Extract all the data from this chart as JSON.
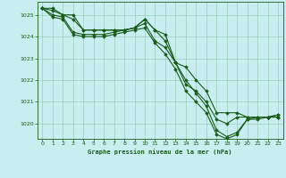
{
  "title": "Graphe pression niveau de la mer (hPa)",
  "bg_color": "#c8eef0",
  "grid_color": "#99ccbb",
  "line_color": "#1a5c1a",
  "xlim": [
    -0.5,
    23.5
  ],
  "ylim": [
    1019.3,
    1025.6
  ],
  "xticks": [
    0,
    1,
    2,
    3,
    4,
    5,
    6,
    7,
    8,
    9,
    10,
    11,
    12,
    13,
    14,
    15,
    16,
    17,
    18,
    19,
    20,
    21,
    22,
    23
  ],
  "yticks": [
    1020,
    1021,
    1022,
    1023,
    1024,
    1025
  ],
  "series": [
    [
      1025.3,
      1025.3,
      1025.0,
      1025.0,
      1024.3,
      1024.3,
      1024.3,
      1024.3,
      1024.3,
      1024.4,
      1024.8,
      1024.3,
      1024.1,
      1022.8,
      1022.6,
      1022.0,
      1021.5,
      1020.5,
      1020.5,
      1020.5,
      1020.3,
      1020.3,
      1020.3,
      1020.3
    ],
    [
      1025.3,
      1025.2,
      1025.0,
      1024.8,
      1024.3,
      1024.3,
      1024.3,
      1024.3,
      1024.3,
      1024.4,
      1024.8,
      1024.3,
      1023.8,
      1022.8,
      1021.8,
      1021.5,
      1021.0,
      1020.2,
      1020.0,
      1020.3,
      1020.3,
      1020.3,
      1020.3,
      1020.3
    ],
    [
      1025.3,
      1025.0,
      1024.9,
      1024.2,
      1024.1,
      1024.1,
      1024.1,
      1024.2,
      1024.3,
      1024.4,
      1024.6,
      1023.8,
      1023.5,
      1022.8,
      1022.0,
      1021.4,
      1020.8,
      1019.7,
      1019.4,
      1019.6,
      1020.2,
      1020.3,
      1020.3,
      1020.4
    ],
    [
      1025.3,
      1024.9,
      1024.8,
      1024.1,
      1024.0,
      1024.0,
      1024.0,
      1024.1,
      1024.2,
      1024.3,
      1024.4,
      1023.7,
      1023.2,
      1022.5,
      1021.5,
      1021.0,
      1020.5,
      1019.5,
      1019.3,
      1019.5,
      1020.2,
      1020.2,
      1020.3,
      1020.4
    ]
  ]
}
